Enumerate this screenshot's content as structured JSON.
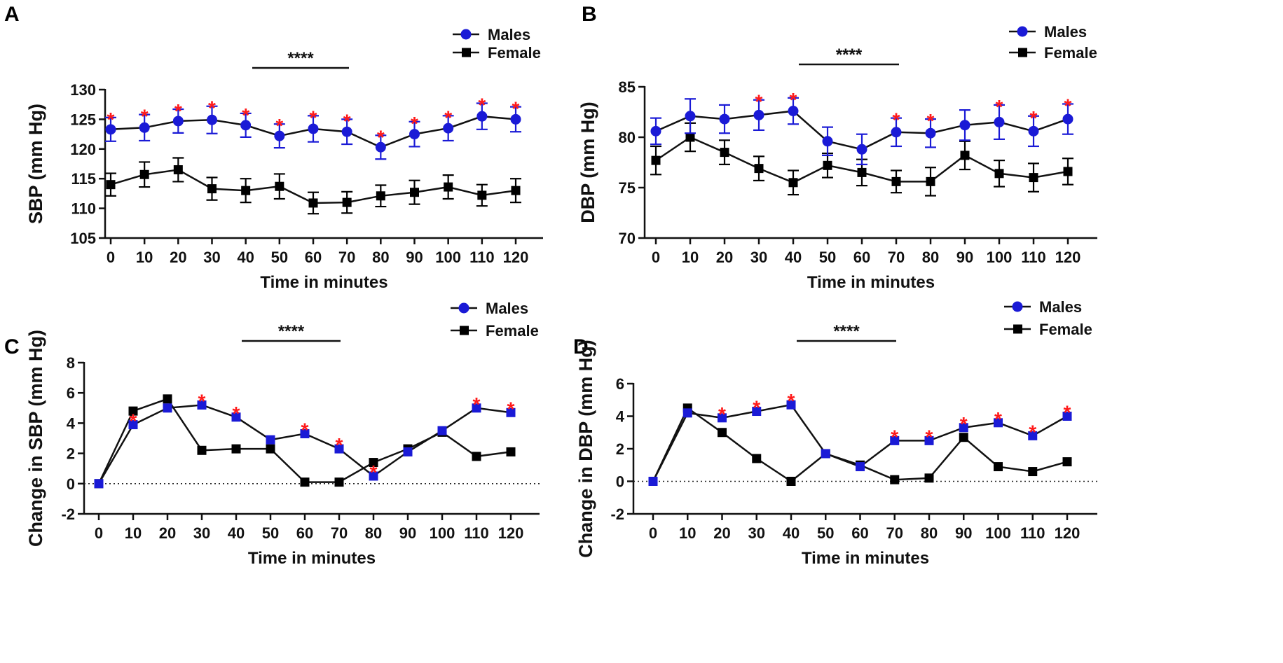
{
  "figure": {
    "colors": {
      "males": "#1a1ad6",
      "female": "#000000",
      "star": "#ff1a1a",
      "axis": "#111111"
    }
  },
  "chart_data": [
    {
      "panel": "A",
      "type": "line",
      "xlabel": "Time in minutes",
      "ylabel": "SBP (mm Hg)",
      "x": [
        0,
        10,
        20,
        30,
        40,
        50,
        60,
        70,
        80,
        90,
        100,
        110,
        120
      ],
      "ylim": [
        105,
        130
      ],
      "yticks": [
        105,
        110,
        115,
        120,
        125,
        130
      ],
      "ytick_labels": [
        "105",
        "110",
        "115",
        "120",
        "125",
        "130"
      ],
      "zero_line": false,
      "error_bars": true,
      "significance": {
        "label": "****",
        "from_x": 40,
        "to_x": 70
      },
      "series": [
        {
          "name": "Males",
          "marker": "circle",
          "values": [
            123.3,
            123.6,
            124.7,
            124.9,
            124.0,
            122.2,
            123.4,
            122.9,
            120.3,
            122.5,
            123.5,
            125.5,
            125.0
          ],
          "errors": [
            2.0,
            2.2,
            2.0,
            2.3,
            2.0,
            2.0,
            2.2,
            2.1,
            2.0,
            2.1,
            2.1,
            2.2,
            2.1
          ]
        },
        {
          "name": "Female",
          "marker": "square",
          "values": [
            114.0,
            115.7,
            116.5,
            113.3,
            113.0,
            113.7,
            110.9,
            111.0,
            112.1,
            112.7,
            113.6,
            112.2,
            113.0
          ],
          "errors": [
            1.9,
            2.1,
            2.0,
            1.9,
            2.0,
            2.1,
            1.8,
            1.8,
            1.8,
            2.0,
            2.0,
            1.8,
            2.0
          ]
        }
      ],
      "stars_at": [
        0,
        10,
        20,
        30,
        40,
        50,
        60,
        70,
        80,
        90,
        100,
        110,
        120
      ]
    },
    {
      "panel": "B",
      "type": "line",
      "xlabel": "Time in minutes",
      "ylabel": "DBP (mm Hg)",
      "x": [
        0,
        10,
        20,
        30,
        40,
        50,
        60,
        70,
        80,
        90,
        100,
        110,
        120
      ],
      "ylim": [
        70,
        85
      ],
      "yticks": [
        70,
        75,
        80,
        85
      ],
      "ytick_labels": [
        "70",
        "75",
        "80",
        "85"
      ],
      "zero_line": false,
      "error_bars": true,
      "significance": {
        "label": "****",
        "from_x": 40,
        "to_x": 70
      },
      "series": [
        {
          "name": "Males",
          "marker": "circle",
          "values": [
            80.6,
            82.1,
            81.8,
            82.2,
            82.6,
            79.6,
            78.8,
            80.5,
            80.4,
            81.2,
            81.5,
            80.6,
            81.8
          ],
          "errors": [
            1.3,
            1.7,
            1.4,
            1.5,
            1.3,
            1.4,
            1.5,
            1.4,
            1.4,
            1.5,
            1.7,
            1.5,
            1.5
          ]
        },
        {
          "name": "Female",
          "marker": "square",
          "values": [
            77.7,
            80.0,
            78.5,
            76.9,
            75.5,
            77.2,
            76.5,
            75.6,
            75.6,
            78.2,
            76.4,
            76.0,
            76.6
          ],
          "errors": [
            1.4,
            1.4,
            1.2,
            1.2,
            1.2,
            1.2,
            1.3,
            1.1,
            1.4,
            1.4,
            1.3,
            1.4,
            1.3
          ]
        }
      ],
      "stars_at": [
        30,
        40,
        70,
        80,
        100,
        110,
        120
      ]
    },
    {
      "panel": "C",
      "type": "line",
      "xlabel": "Time in minutes",
      "ylabel": "Change in SBP (mm Hg)",
      "x": [
        0,
        10,
        20,
        30,
        40,
        50,
        60,
        70,
        80,
        90,
        100,
        110,
        120
      ],
      "ylim": [
        -2,
        8
      ],
      "yticks": [
        -2,
        0,
        2,
        4,
        6,
        8
      ],
      "ytick_labels": [
        "-2",
        "0",
        "2",
        "4",
        "6",
        "8"
      ],
      "zero_line": true,
      "error_bars": false,
      "significance": {
        "label": "****",
        "from_x": 40,
        "to_x": 70
      },
      "series": [
        {
          "name": "Males",
          "marker": "circle",
          "values": [
            0.0,
            3.9,
            5.0,
            5.2,
            4.4,
            2.9,
            3.3,
            2.3,
            0.5,
            2.1,
            3.5,
            5.0,
            4.7
          ]
        },
        {
          "name": "Female",
          "marker": "square",
          "values": [
            0.0,
            4.8,
            5.6,
            2.2,
            2.3,
            2.3,
            0.1,
            0.1,
            1.4,
            2.3,
            3.4,
            1.8,
            2.1
          ]
        }
      ],
      "stars_at": [
        10,
        30,
        40,
        60,
        70,
        80,
        110,
        120
      ]
    },
    {
      "panel": "D",
      "type": "line",
      "xlabel": "Time in minutes",
      "ylabel": "Change in DBP (mm Hg)",
      "x": [
        0,
        10,
        20,
        30,
        40,
        50,
        60,
        70,
        80,
        90,
        100,
        110,
        120
      ],
      "ylim": [
        -2,
        6
      ],
      "yticks": [
        -2,
        0,
        2,
        4,
        6
      ],
      "ytick_labels": [
        "-2",
        "0",
        "2",
        "4",
        "6"
      ],
      "zero_line": true,
      "error_bars": false,
      "significance": {
        "label": "****",
        "from_x": 40,
        "to_x": 70
      },
      "series": [
        {
          "name": "Males",
          "marker": "circle",
          "values": [
            0.0,
            4.2,
            3.9,
            4.3,
            4.7,
            1.7,
            0.9,
            2.5,
            2.5,
            3.3,
            3.6,
            2.8,
            4.0
          ]
        },
        {
          "name": "Female",
          "marker": "square",
          "values": [
            0.0,
            4.5,
            3.0,
            1.4,
            0.0,
            1.7,
            1.0,
            0.1,
            0.2,
            2.7,
            0.9,
            0.6,
            1.2
          ]
        }
      ],
      "stars_at": [
        20,
        30,
        40,
        70,
        80,
        90,
        100,
        110,
        120
      ]
    }
  ]
}
